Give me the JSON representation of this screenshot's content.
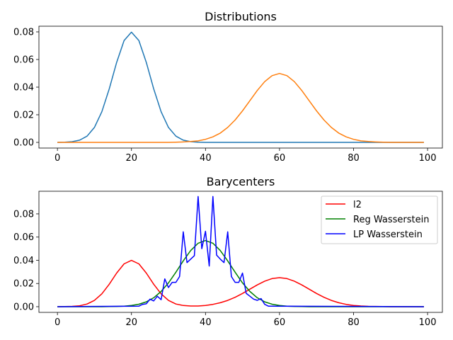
{
  "chart_data": [
    {
      "type": "line",
      "title": "Distributions",
      "xlabel": "",
      "ylabel": "",
      "xlim": [
        -5,
        104
      ],
      "ylim": [
        -0.0041,
        0.0841
      ],
      "xticks": [
        "0",
        "20",
        "40",
        "60",
        "80",
        "100"
      ],
      "yticks": [
        "0.00",
        "0.02",
        "0.04",
        "0.06",
        "0.08"
      ],
      "grid": false,
      "series": [
        {
          "color": "#1f77b4",
          "x": [
            0,
            2,
            4,
            6,
            8,
            10,
            12,
            14,
            16,
            18,
            20,
            22,
            24,
            26,
            28,
            30,
            32,
            34,
            36,
            38,
            40,
            42,
            44,
            46,
            48,
            50,
            52,
            54,
            56,
            58,
            60,
            62,
            64,
            66,
            68,
            70,
            72,
            74,
            76,
            78,
            80,
            82,
            84,
            86,
            88,
            90,
            92,
            94,
            96,
            98,
            99
          ],
          "y": [
            0,
            0.0001,
            0.0005,
            0.0016,
            0.0045,
            0.0108,
            0.0222,
            0.0388,
            0.0579,
            0.0737,
            0.0798,
            0.0737,
            0.0579,
            0.0388,
            0.0222,
            0.0108,
            0.0045,
            0.0016,
            0.0005,
            0.0001,
            0,
            0,
            0,
            0,
            0,
            0,
            0,
            0,
            0,
            0,
            0,
            0,
            0,
            0,
            0,
            0,
            0,
            0,
            0,
            0,
            0,
            0,
            0,
            0,
            0,
            0,
            0,
            0,
            0,
            0,
            0
          ]
        },
        {
          "color": "#ff7f0e",
          "x": [
            0,
            2,
            4,
            6,
            8,
            10,
            12,
            14,
            16,
            18,
            20,
            22,
            24,
            26,
            28,
            30,
            32,
            34,
            36,
            38,
            40,
            42,
            44,
            46,
            48,
            50,
            52,
            54,
            56,
            58,
            60,
            62,
            64,
            66,
            68,
            70,
            72,
            74,
            76,
            78,
            80,
            82,
            84,
            86,
            88,
            90,
            92,
            94,
            96,
            98,
            99
          ],
          "y": [
            0,
            0,
            0,
            0,
            0,
            0,
            0,
            0,
            0,
            0,
            0,
            0,
            0,
            0,
            0,
            0,
            0.0001,
            0.0003,
            0.0006,
            0.0011,
            0.0022,
            0.004,
            0.0067,
            0.0108,
            0.0162,
            0.0228,
            0.0302,
            0.0376,
            0.044,
            0.0483,
            0.0499,
            0.0483,
            0.044,
            0.0376,
            0.0302,
            0.0228,
            0.0162,
            0.0108,
            0.0067,
            0.004,
            0.0022,
            0.0011,
            0.0006,
            0.0003,
            0.0001,
            0,
            0,
            0,
            0,
            0,
            0
          ]
        }
      ]
    },
    {
      "type": "line",
      "title": "Barycenters",
      "xlabel": "",
      "ylabel": "",
      "xlim": [
        -5,
        104
      ],
      "ylim": [
        -0.0049,
        0.0995
      ],
      "xticks": [
        "0",
        "20",
        "40",
        "60",
        "80",
        "100"
      ],
      "yticks": [
        "0.00",
        "0.02",
        "0.04",
        "0.06",
        "0.08"
      ],
      "grid": false,
      "legend": "top-right",
      "series": [
        {
          "name": "l2",
          "color": "#ff0000",
          "x": [
            0,
            2,
            4,
            6,
            8,
            10,
            12,
            14,
            16,
            18,
            20,
            22,
            24,
            26,
            28,
            30,
            32,
            34,
            36,
            38,
            40,
            42,
            44,
            46,
            48,
            50,
            52,
            54,
            56,
            58,
            60,
            62,
            64,
            66,
            68,
            70,
            72,
            74,
            76,
            78,
            80,
            82,
            84,
            86,
            88,
            90,
            92,
            94,
            96,
            98,
            99
          ],
          "y": [
            0,
            0.0001,
            0.0003,
            0.0008,
            0.0023,
            0.0054,
            0.0111,
            0.0194,
            0.029,
            0.0369,
            0.0399,
            0.0369,
            0.029,
            0.0194,
            0.0111,
            0.0054,
            0.0023,
            0.001,
            0.0006,
            0.0006,
            0.0011,
            0.002,
            0.0034,
            0.0054,
            0.0081,
            0.0114,
            0.0151,
            0.0188,
            0.022,
            0.0242,
            0.025,
            0.0242,
            0.022,
            0.0188,
            0.0151,
            0.0114,
            0.0081,
            0.0054,
            0.0034,
            0.002,
            0.0011,
            0.0006,
            0.0003,
            0.0002,
            0.0001,
            0,
            0,
            0,
            0,
            0,
            0
          ]
        },
        {
          "name": "Reg Wasserstein",
          "color": "#008000",
          "x": [
            0,
            2,
            4,
            6,
            8,
            10,
            12,
            14,
            16,
            18,
            20,
            22,
            24,
            26,
            28,
            30,
            32,
            34,
            36,
            38,
            40,
            42,
            44,
            46,
            48,
            50,
            52,
            54,
            56,
            58,
            60,
            62,
            64,
            66,
            68,
            70,
            72,
            74,
            76,
            78,
            80,
            82,
            84,
            86,
            88,
            90,
            92,
            94,
            96,
            98,
            99
          ],
          "y": [
            0,
            0,
            0,
            0,
            0,
            0,
            0,
            0.0001,
            0.0002,
            0.0004,
            0.001,
            0.0021,
            0.0042,
            0.0077,
            0.0131,
            0.0205,
            0.0297,
            0.0395,
            0.0484,
            0.0547,
            0.057,
            0.0547,
            0.0484,
            0.0395,
            0.0297,
            0.0205,
            0.0131,
            0.0077,
            0.0042,
            0.0021,
            0.001,
            0.0004,
            0.0002,
            0.0001,
            0,
            0,
            0,
            0,
            0,
            0,
            0,
            0,
            0,
            0,
            0,
            0,
            0,
            0,
            0,
            0,
            0
          ]
        },
        {
          "name": "LP Wasserstein",
          "color": "#0000ff",
          "x": [
            0,
            22,
            23,
            24,
            25,
            26,
            27,
            28,
            29,
            30,
            31,
            32,
            33,
            34,
            35,
            36,
            37,
            38,
            39,
            40,
            41,
            42,
            43,
            44,
            45,
            46,
            47,
            48,
            49,
            50,
            51,
            52,
            53,
            54,
            55,
            56,
            57,
            99
          ],
          "y": [
            0,
            0.0005,
            0.002,
            0.0025,
            0.0065,
            0.005,
            0.009,
            0.006,
            0.024,
            0.0165,
            0.021,
            0.021,
            0.026,
            0.0645,
            0.038,
            0.041,
            0.044,
            0.095,
            0.05,
            0.065,
            0.035,
            0.095,
            0.0445,
            0.041,
            0.038,
            0.0645,
            0.026,
            0.021,
            0.021,
            0.029,
            0.0115,
            0.009,
            0.0065,
            0.0055,
            0.007,
            0.002,
            0.0005,
            0
          ]
        }
      ]
    }
  ]
}
